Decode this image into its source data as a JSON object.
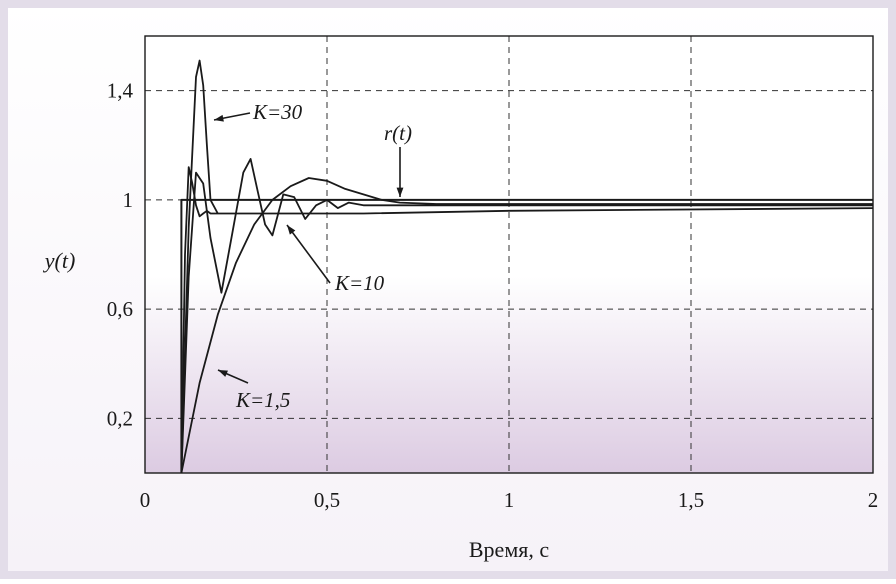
{
  "chart_data": {
    "type": "line",
    "title": "",
    "xlabel": "Время, с",
    "ylabel": "y(t)",
    "xlim": [
      0,
      2
    ],
    "ylim": [
      0,
      1.6
    ],
    "grid": true,
    "x_ticks": [
      {
        "value": 0,
        "label": "0"
      },
      {
        "value": 0.5,
        "label": "0,5"
      },
      {
        "value": 1,
        "label": "1"
      },
      {
        "value": 1.5,
        "label": "1,5"
      },
      {
        "value": 2,
        "label": "2"
      }
    ],
    "y_ticks": [
      {
        "value": 0.2,
        "label": "0,2"
      },
      {
        "value": 0.6,
        "label": "0,6"
      },
      {
        "value": 1,
        "label": "1"
      },
      {
        "value": 1.4,
        "label": "1,4"
      }
    ],
    "grid_x": [
      0.5,
      1,
      1.5
    ],
    "grid_y": [
      0.2,
      0.6,
      1,
      1.4
    ],
    "step_start": 0.1,
    "series": [
      {
        "name": "r(t)",
        "x": [
          0.1,
          0.1,
          2
        ],
        "y": [
          0,
          1,
          1
        ]
      },
      {
        "name": "K=1,5",
        "x": [
          0.1,
          0.15,
          0.2,
          0.25,
          0.3,
          0.35,
          0.4,
          0.45,
          0.5,
          0.55,
          0.6,
          0.65,
          0.7,
          0.8,
          1.0,
          1.5,
          2.0
        ],
        "y": [
          0,
          0.33,
          0.58,
          0.77,
          0.91,
          1.0,
          1.05,
          1.08,
          1.07,
          1.04,
          1.02,
          1.0,
          0.99,
          0.985,
          0.985,
          0.985,
          0.985
        ]
      },
      {
        "name": "K=10",
        "x": [
          0.1,
          0.12,
          0.14,
          0.16,
          0.18,
          0.21,
          0.24,
          0.27,
          0.29,
          0.31,
          0.33,
          0.35,
          0.38,
          0.41,
          0.44,
          0.47,
          0.5,
          0.53,
          0.56,
          0.6,
          0.7,
          1.0,
          2.0
        ],
        "y": [
          0,
          0.72,
          1.1,
          1.06,
          0.86,
          0.66,
          0.88,
          1.1,
          1.15,
          1.03,
          0.91,
          0.87,
          1.02,
          1.01,
          0.93,
          0.98,
          1.0,
          0.97,
          0.99,
          0.98,
          0.98,
          0.98,
          0.98
        ]
      },
      {
        "name": "K=30",
        "x": [
          0.1,
          0.11,
          0.12,
          0.13,
          0.14,
          0.15,
          0.16,
          0.17,
          0.18,
          0.2,
          0.22,
          0.25,
          0.3,
          0.4,
          0.6,
          1.0,
          2.0
        ],
        "y": [
          0,
          0.8,
          1.12,
          1.06,
          0.98,
          0.94,
          0.95,
          0.96,
          0.95,
          0.95,
          0.95,
          0.95,
          0.95,
          0.95,
          0.95,
          0.96,
          0.97
        ]
      }
    ],
    "peak_series": {
      "x": [
        0.1,
        0.12,
        0.14,
        0.15,
        0.16,
        0.17,
        0.18,
        0.2
      ],
      "y": [
        0,
        0.9,
        1.45,
        1.51,
        1.42,
        1.2,
        1.0,
        0.95
      ]
    },
    "annotations": [
      {
        "text": "K=30",
        "x": 0.2,
        "y": 1.4
      },
      {
        "text": "K=10",
        "x": 0.4,
        "y": 0.9
      },
      {
        "text": "K=1,5",
        "x": 0.25,
        "y": 0.38
      },
      {
        "text": "r(t)",
        "x": 0.69,
        "y": 0.98
      }
    ],
    "colors": {
      "line": "#1a1a1a",
      "plot_top": "#ffffff",
      "plot_bottom": "#dccbe2",
      "frame": "#e7e1ed"
    }
  }
}
